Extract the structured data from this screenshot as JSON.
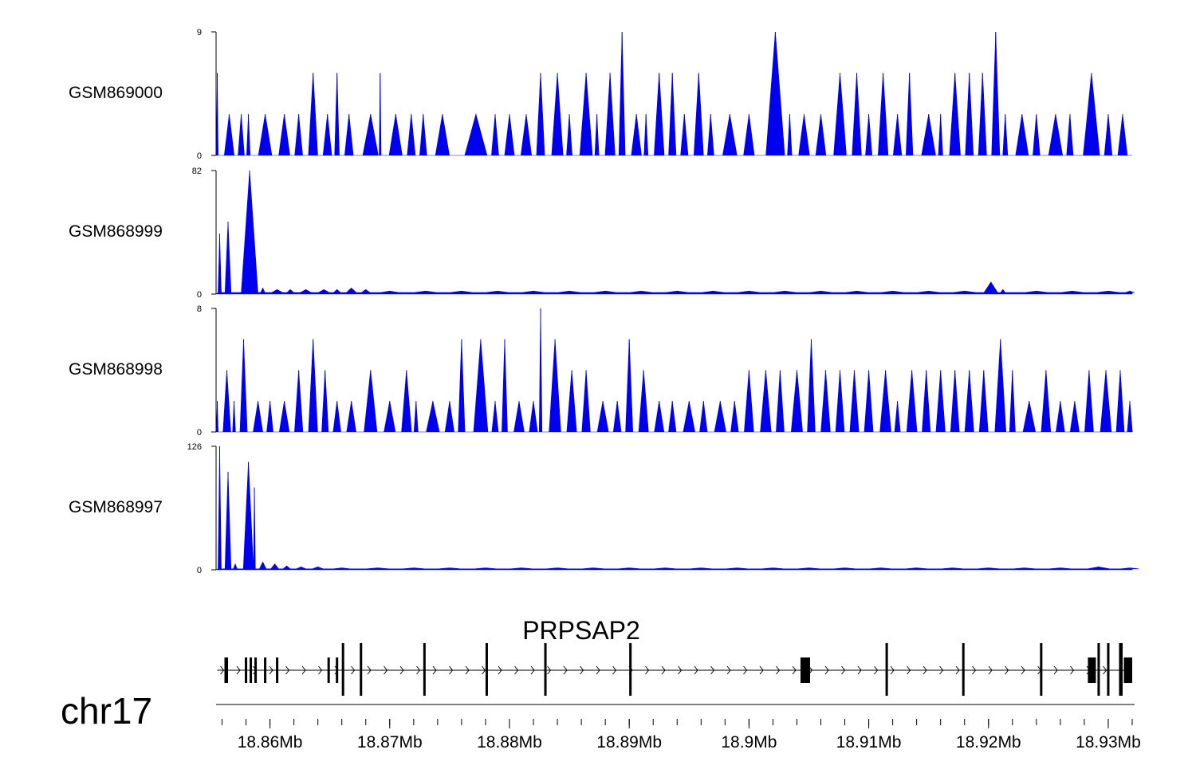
{
  "colors": {
    "signal": "#0000ee",
    "axis": "#000000",
    "gene": "#000000"
  },
  "chart_data": {
    "type": "area",
    "grid": false,
    "x_unit": "Mb",
    "xlim": [
      18.8555,
      18.932
    ],
    "tracks": [
      {
        "name": "GSM869000",
        "ylim": [
          0,
          9
        ],
        "ytick_labels": [
          "0",
          "9"
        ],
        "baseline": 0,
        "peaks": [
          [
            18.8556,
            6
          ],
          [
            18.8566,
            3
          ],
          [
            18.8576,
            3
          ],
          [
            18.8582,
            3
          ],
          [
            18.8596,
            3
          ],
          [
            18.8612,
            3
          ],
          [
            18.8624,
            3
          ],
          [
            18.8636,
            6
          ],
          [
            18.8648,
            3
          ],
          [
            18.8656,
            6
          ],
          [
            18.8666,
            3
          ],
          [
            18.8684,
            3
          ],
          [
            18.8692,
            6
          ],
          [
            18.8705,
            3
          ],
          [
            18.8718,
            3
          ],
          [
            18.8728,
            3
          ],
          [
            18.8744,
            3
          ],
          [
            18.8772,
            3
          ],
          [
            18.8788,
            3
          ],
          [
            18.88,
            3
          ],
          [
            18.8814,
            3
          ],
          [
            18.8826,
            6
          ],
          [
            18.884,
            6
          ],
          [
            18.885,
            3
          ],
          [
            18.8864,
            6
          ],
          [
            18.8873,
            3
          ],
          [
            18.8884,
            6
          ],
          [
            18.8894,
            9
          ],
          [
            18.8906,
            3
          ],
          [
            18.8914,
            3
          ],
          [
            18.8925,
            6
          ],
          [
            18.8936,
            6
          ],
          [
            18.8946,
            3
          ],
          [
            18.8958,
            6
          ],
          [
            18.8968,
            3
          ],
          [
            18.8984,
            3
          ],
          [
            18.9,
            3
          ],
          [
            18.9022,
            9
          ],
          [
            18.9034,
            3
          ],
          [
            18.9046,
            3
          ],
          [
            18.906,
            3
          ],
          [
            18.9076,
            6
          ],
          [
            18.909,
            6
          ],
          [
            18.91,
            3
          ],
          [
            18.9112,
            6
          ],
          [
            18.9124,
            3
          ],
          [
            18.9134,
            6
          ],
          [
            18.915,
            3
          ],
          [
            18.916,
            3
          ],
          [
            18.9172,
            6
          ],
          [
            18.9184,
            6
          ],
          [
            18.9195,
            6
          ],
          [
            18.9206,
            9
          ],
          [
            18.9214,
            3
          ],
          [
            18.9228,
            3
          ],
          [
            18.924,
            3
          ],
          [
            18.9256,
            3
          ],
          [
            18.9268,
            3
          ],
          [
            18.9286,
            6
          ],
          [
            18.93,
            3
          ],
          [
            18.9312,
            3
          ]
        ]
      },
      {
        "name": "GSM868999",
        "ylim": [
          0,
          82
        ],
        "ytick_labels": [
          "0",
          "82"
        ],
        "baseline": 1,
        "peaks": [
          [
            18.8558,
            40
          ],
          [
            18.8565,
            48
          ],
          [
            18.8583,
            82
          ],
          [
            18.8594,
            4
          ],
          [
            18.8606,
            3
          ],
          [
            18.8617,
            3
          ],
          [
            18.863,
            3
          ],
          [
            18.8645,
            3
          ],
          [
            18.8656,
            3
          ],
          [
            18.8668,
            4
          ],
          [
            18.868,
            3
          ],
          [
            18.87,
            2
          ],
          [
            18.873,
            2
          ],
          [
            18.876,
            2
          ],
          [
            18.879,
            2
          ],
          [
            18.882,
            2
          ],
          [
            18.885,
            2
          ],
          [
            18.888,
            2
          ],
          [
            18.891,
            2
          ],
          [
            18.894,
            2
          ],
          [
            18.897,
            2
          ],
          [
            18.9,
            2
          ],
          [
            18.903,
            2
          ],
          [
            18.906,
            2
          ],
          [
            18.909,
            2
          ],
          [
            18.912,
            2
          ],
          [
            18.915,
            2
          ],
          [
            18.918,
            2
          ],
          [
            18.9202,
            8
          ],
          [
            18.9212,
            3
          ],
          [
            18.924,
            2
          ],
          [
            18.927,
            2
          ],
          [
            18.93,
            2
          ],
          [
            18.9318,
            2
          ]
        ]
      },
      {
        "name": "GSM868998",
        "ylim": [
          0,
          8
        ],
        "ytick_labels": [
          "0",
          "8"
        ],
        "baseline": 0,
        "peaks": [
          [
            18.8556,
            2
          ],
          [
            18.8564,
            4
          ],
          [
            18.857,
            2
          ],
          [
            18.8578,
            6
          ],
          [
            18.859,
            2
          ],
          [
            18.86,
            2
          ],
          [
            18.8612,
            2
          ],
          [
            18.8624,
            4
          ],
          [
            18.8636,
            6
          ],
          [
            18.8646,
            4
          ],
          [
            18.8656,
            2
          ],
          [
            18.8668,
            2
          ],
          [
            18.8684,
            4
          ],
          [
            18.87,
            2
          ],
          [
            18.8714,
            4
          ],
          [
            18.8722,
            2
          ],
          [
            18.8736,
            2
          ],
          [
            18.875,
            2
          ],
          [
            18.876,
            6
          ],
          [
            18.8776,
            6
          ],
          [
            18.8788,
            2
          ],
          [
            18.8796,
            6
          ],
          [
            18.8808,
            2
          ],
          [
            18.882,
            2
          ],
          [
            18.8826,
            8
          ],
          [
            18.8838,
            6
          ],
          [
            18.8852,
            4
          ],
          [
            18.8864,
            4
          ],
          [
            18.8878,
            2
          ],
          [
            18.889,
            2
          ],
          [
            18.89,
            6
          ],
          [
            18.8912,
            4
          ],
          [
            18.8925,
            2
          ],
          [
            18.8936,
            2
          ],
          [
            18.895,
            2
          ],
          [
            18.8962,
            2
          ],
          [
            18.8976,
            2
          ],
          [
            18.8988,
            2
          ],
          [
            18.9,
            4
          ],
          [
            18.9014,
            4
          ],
          [
            18.9026,
            4
          ],
          [
            18.904,
            4
          ],
          [
            18.9052,
            6
          ],
          [
            18.9064,
            4
          ],
          [
            18.9076,
            4
          ],
          [
            18.9088,
            4
          ],
          [
            18.91,
            4
          ],
          [
            18.9114,
            4
          ],
          [
            18.9124,
            2
          ],
          [
            18.9136,
            4
          ],
          [
            18.9148,
            4
          ],
          [
            18.916,
            4
          ],
          [
            18.9172,
            4
          ],
          [
            18.9184,
            4
          ],
          [
            18.9196,
            4
          ],
          [
            18.921,
            6
          ],
          [
            18.922,
            4
          ],
          [
            18.9234,
            2
          ],
          [
            18.9248,
            4
          ],
          [
            18.926,
            2
          ],
          [
            18.9272,
            2
          ],
          [
            18.9284,
            4
          ],
          [
            18.9298,
            4
          ],
          [
            18.931,
            4
          ],
          [
            18.9318,
            2
          ]
        ]
      },
      {
        "name": "GSM868997",
        "ylim": [
          0,
          126
        ],
        "ytick_labels": [
          "0",
          "126"
        ],
        "baseline": 1,
        "peaks": [
          [
            18.8558,
            126
          ],
          [
            18.8565,
            100
          ],
          [
            18.8571,
            6
          ],
          [
            18.8582,
            110
          ],
          [
            18.8587,
            84
          ],
          [
            18.8594,
            8
          ],
          [
            18.8604,
            6
          ],
          [
            18.8614,
            4
          ],
          [
            18.8626,
            3
          ],
          [
            18.864,
            3
          ],
          [
            18.866,
            2
          ],
          [
            18.869,
            2
          ],
          [
            18.872,
            2
          ],
          [
            18.875,
            2
          ],
          [
            18.878,
            2
          ],
          [
            18.881,
            2
          ],
          [
            18.884,
            2
          ],
          [
            18.887,
            2
          ],
          [
            18.89,
            2
          ],
          [
            18.893,
            2
          ],
          [
            18.896,
            2
          ],
          [
            18.899,
            2
          ],
          [
            18.902,
            2
          ],
          [
            18.905,
            2
          ],
          [
            18.908,
            2
          ],
          [
            18.911,
            2
          ],
          [
            18.914,
            2
          ],
          [
            18.917,
            2
          ],
          [
            18.92,
            2
          ],
          [
            18.923,
            2
          ],
          [
            18.926,
            2
          ],
          [
            18.9292,
            3
          ],
          [
            18.9318,
            2
          ]
        ]
      }
    ],
    "gene": {
      "name": "PRPSAP2",
      "strand": "+",
      "start": 18.8556,
      "end": 18.932,
      "exons": [
        [
          18.8562,
          18.8565,
          "small"
        ],
        [
          18.8579,
          18.8581,
          "small"
        ],
        [
          18.8583,
          18.8585,
          "small"
        ],
        [
          18.8587,
          18.8589,
          "small"
        ],
        [
          18.8595,
          18.8597,
          "small"
        ],
        [
          18.8605,
          18.8607,
          "small"
        ],
        [
          18.8648,
          18.865,
          "small"
        ],
        [
          18.8655,
          18.8657,
          "small"
        ],
        [
          18.866,
          18.8662,
          "tall"
        ],
        [
          18.8675,
          18.8677,
          "tall"
        ],
        [
          18.8728,
          18.873,
          "tall"
        ],
        [
          18.878,
          18.8782,
          "tall"
        ],
        [
          18.8829,
          18.8831,
          "tall"
        ],
        [
          18.89,
          18.8902,
          "tall"
        ],
        [
          18.9043,
          18.9051,
          "thick"
        ],
        [
          18.9114,
          18.9116,
          "tall"
        ],
        [
          18.9178,
          18.918,
          "tall"
        ],
        [
          18.9243,
          18.9245,
          "tall"
        ],
        [
          18.9283,
          18.9289,
          "thick"
        ],
        [
          18.9291,
          18.9293,
          "tall"
        ],
        [
          18.9299,
          18.9301,
          "tall"
        ],
        [
          18.9309,
          18.9312,
          "tall"
        ],
        [
          18.9313,
          18.932,
          "thick"
        ]
      ]
    },
    "chromosome": "chr17",
    "xtick_values": [
      18.86,
      18.87,
      18.88,
      18.89,
      18.9,
      18.91,
      18.92,
      18.93
    ],
    "xtick_labels": [
      "18.86Mb",
      "18.87Mb",
      "18.88Mb",
      "18.89Mb",
      "18.9Mb",
      "18.91Mb",
      "18.92Mb",
      "18.93Mb"
    ]
  }
}
